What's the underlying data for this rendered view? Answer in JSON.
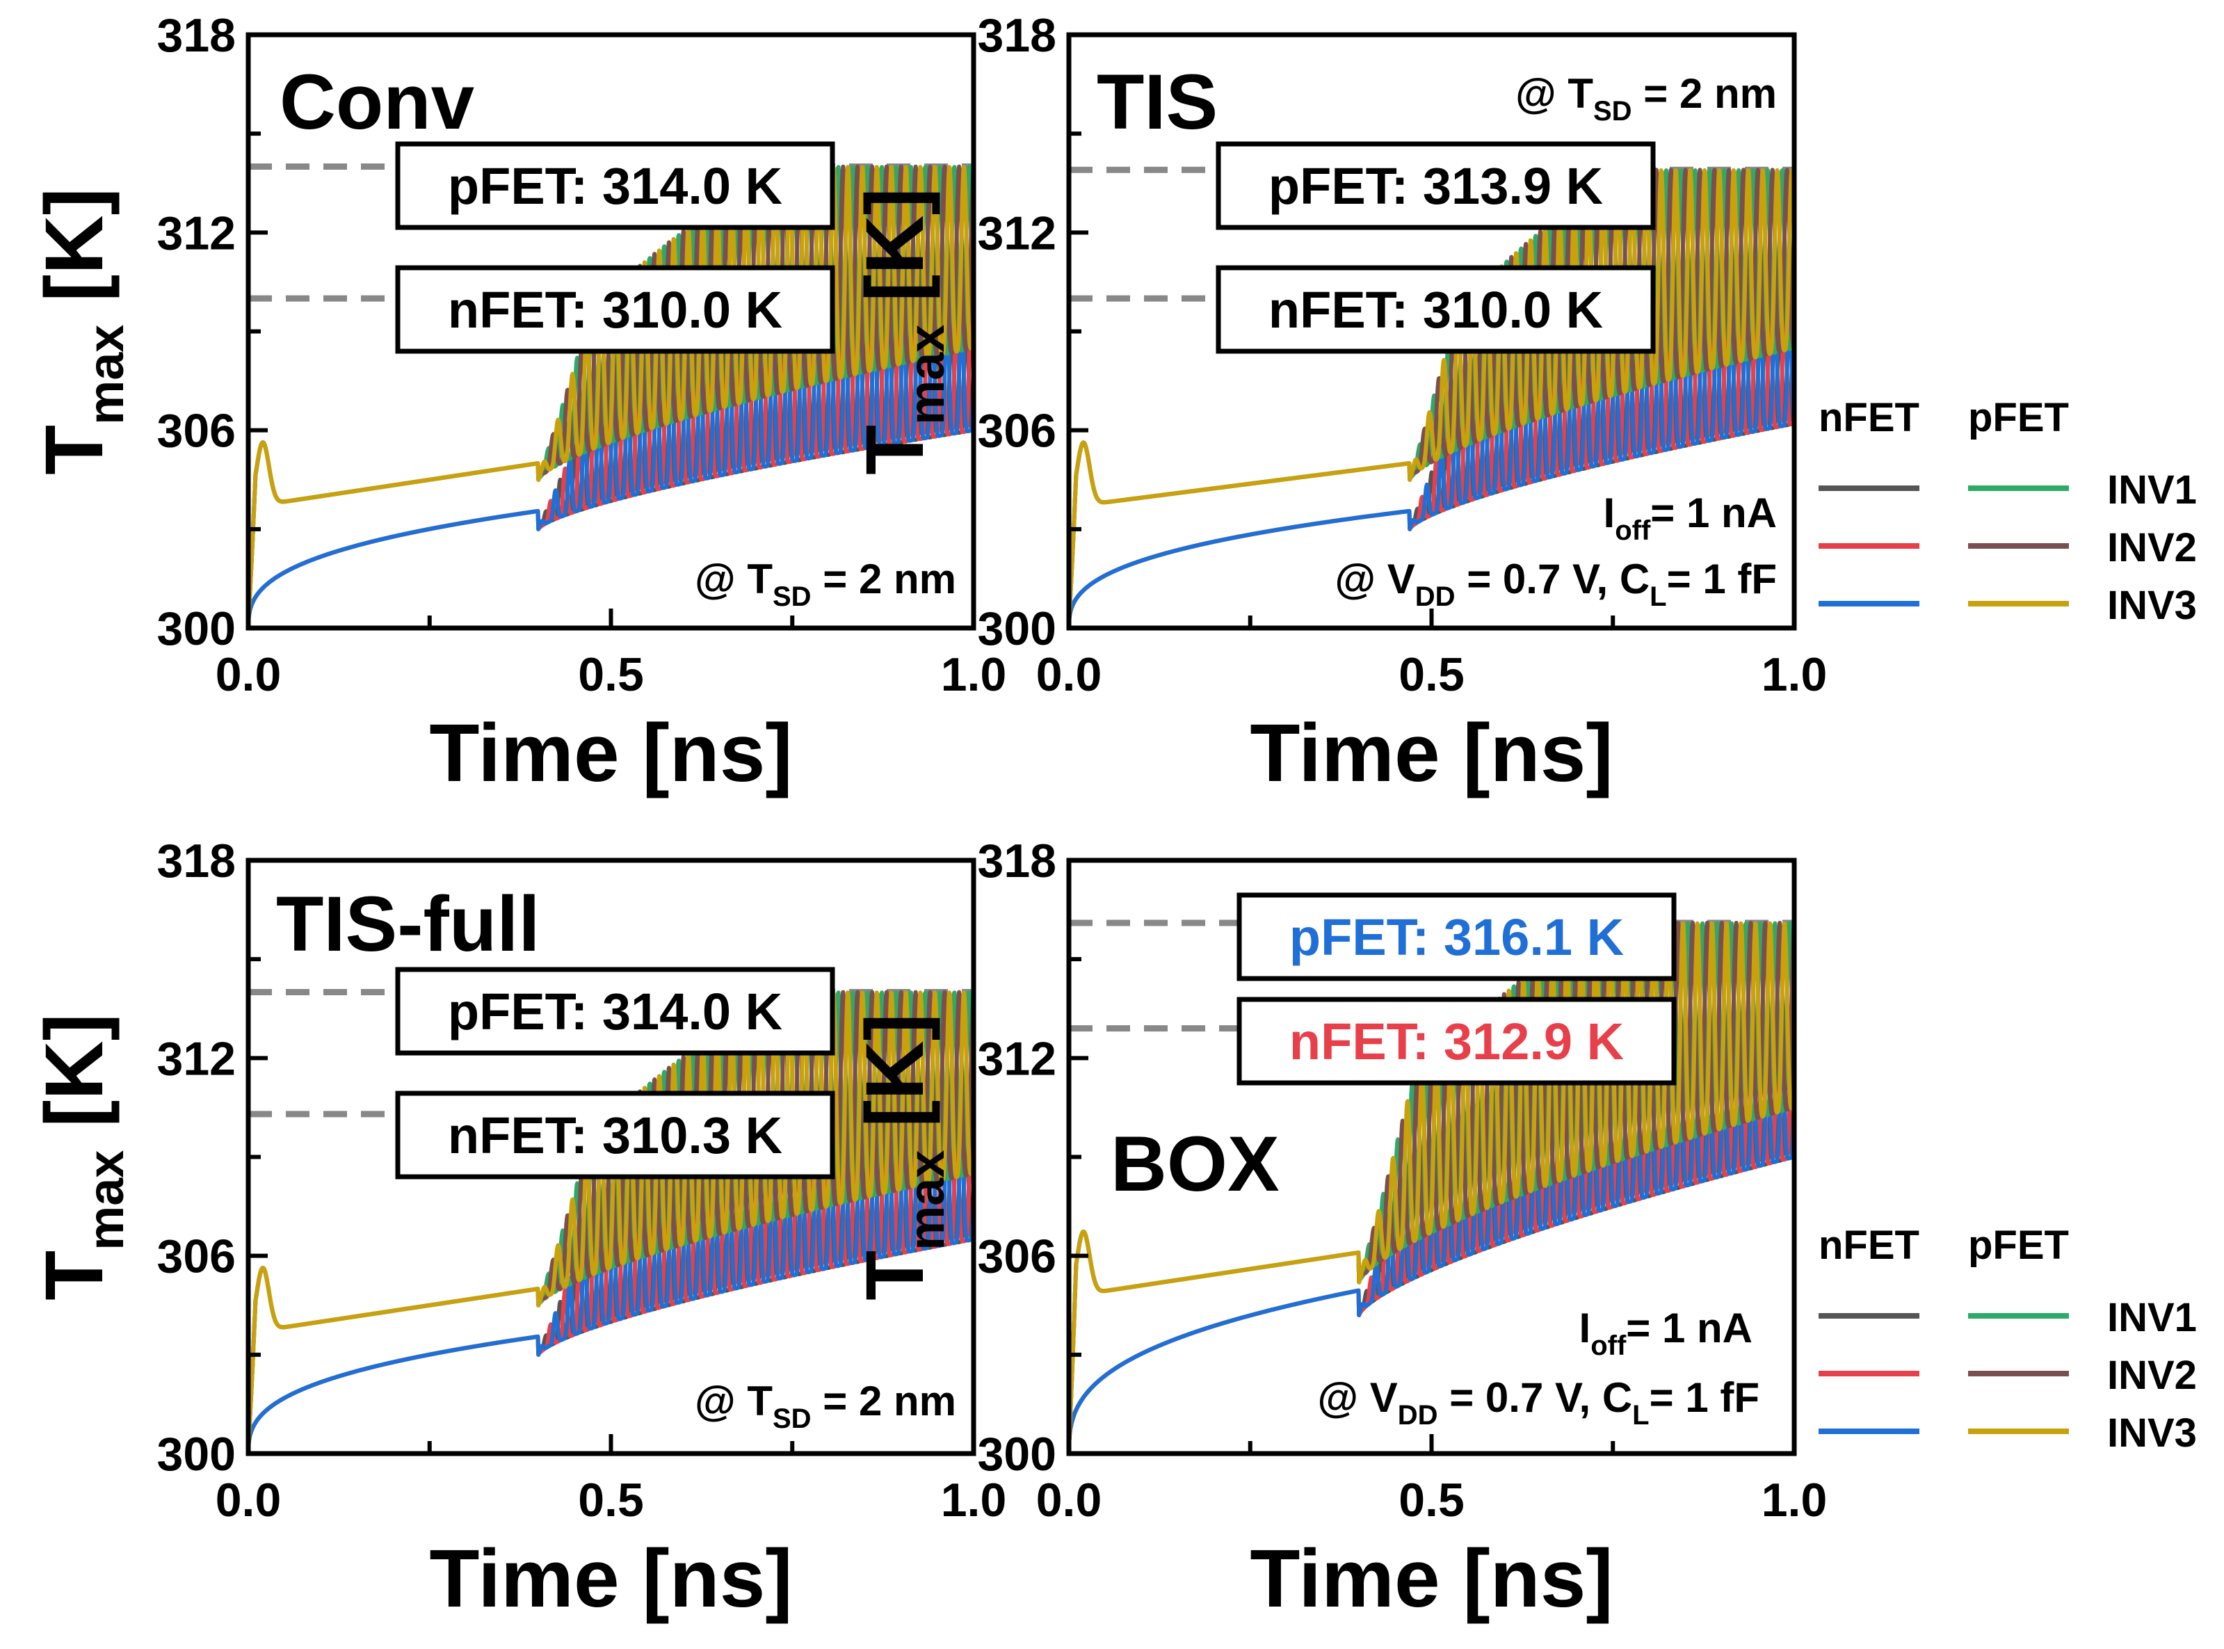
{
  "colors": {
    "nfet_inv1": "#555555",
    "nfet_inv2": "#e8404a",
    "nfet_inv3": "#1f6fd6",
    "pfet_inv1": "#2eaa68",
    "pfet_inv2": "#7b4f4f",
    "pfet_inv3": "#c9a10b",
    "reference_line": "#888888",
    "box_text_highlight_p": "#1f6fd6",
    "box_text_highlight_n": "#e8404a"
  },
  "chart_data": [
    {
      "type": "line",
      "panel": "Conv",
      "title": "Conv",
      "xlabel": "Time [ns]",
      "ylabel": "T_max [K]",
      "xlim": [
        0.0,
        1.0
      ],
      "ylim": [
        300,
        318
      ],
      "xticks": [
        "0.0",
        "0.5",
        "1.0"
      ],
      "yticks": [
        "300",
        "306",
        "312",
        "318"
      ],
      "annotations": [
        {
          "text": "pFET: 314.0 K",
          "ref_value": 314.0,
          "color": "#000000"
        },
        {
          "text": "nFET: 310.0 K",
          "ref_value": 310.0,
          "color": "#000000"
        }
      ],
      "notes": [
        {
          "prefix": "@ T",
          "sub": "SD",
          "suffix": " = 2 nm"
        }
      ],
      "osc_start": 0.4,
      "pfet_envelope": {
        "base": 305.0,
        "peak": 314.0,
        "osc_low_start": 304.5,
        "osc_low_end": 308.5
      },
      "nfet_envelope": {
        "base": 303.6,
        "peak": 310.0,
        "osc_low_start": 303.0,
        "osc_low_end": 306.0
      },
      "series_names": [
        "nFET INV1",
        "nFET INV2",
        "nFET INV3",
        "pFET INV1",
        "pFET INV2",
        "pFET INV3"
      ],
      "legend": null
    },
    {
      "type": "line",
      "panel": "TIS",
      "title": "TIS",
      "xlabel": "Time [ns]",
      "ylabel": "T_max [K]",
      "xlim": [
        0.0,
        1.0
      ],
      "ylim": [
        300,
        318
      ],
      "xticks": [
        "0.0",
        "0.5",
        "1.0"
      ],
      "yticks": [
        "300",
        "306",
        "312",
        "318"
      ],
      "annotations": [
        {
          "text": "pFET: 313.9 K",
          "ref_value": 313.9,
          "color": "#000000"
        },
        {
          "text": "nFET: 310.0 K",
          "ref_value": 310.0,
          "color": "#000000"
        }
      ],
      "notes": [
        {
          "prefix": "@ T",
          "sub": "SD",
          "suffix": " = 2 nm"
        },
        {
          "prefix": "I",
          "sub": "off",
          "suffix": "= 1 nA"
        },
        {
          "prefix": "@ V",
          "sub": "DD",
          "suffix": " = 0.7 V, C",
          "sub2": "L",
          "suffix2": "= 1 fF"
        }
      ],
      "osc_start": 0.47,
      "pfet_envelope": {
        "base": 305.0,
        "peak": 313.9,
        "osc_low_start": 304.5,
        "osc_low_end": 308.5
      },
      "nfet_envelope": {
        "base": 303.6,
        "peak": 310.0,
        "osc_low_start": 303.0,
        "osc_low_end": 306.2
      },
      "series_names": [
        "nFET INV1",
        "nFET INV2",
        "nFET INV3",
        "pFET INV1",
        "pFET INV2",
        "pFET INV3"
      ],
      "legend": {
        "header_n": "nFET",
        "header_p": "pFET",
        "rows": [
          "INV1",
          "INV2",
          "INV3"
        ]
      }
    },
    {
      "type": "line",
      "panel": "TIS-full",
      "title": "TIS-full",
      "xlabel": "Time [ns]",
      "ylabel": "T_max [K]",
      "xlim": [
        0.0,
        1.0
      ],
      "ylim": [
        300,
        318
      ],
      "xticks": [
        "0.0",
        "0.5",
        "1.0"
      ],
      "yticks": [
        "300",
        "306",
        "312",
        "318"
      ],
      "annotations": [
        {
          "text": "pFET: 314.0 K",
          "ref_value": 314.0,
          "color": "#000000"
        },
        {
          "text": "nFET: 310.3 K",
          "ref_value": 310.3,
          "color": "#000000"
        }
      ],
      "notes": [
        {
          "prefix": "@ T",
          "sub": "SD",
          "suffix": " = 2 nm"
        }
      ],
      "osc_start": 0.4,
      "pfet_envelope": {
        "base": 305.0,
        "peak": 314.0,
        "osc_low_start": 304.5,
        "osc_low_end": 308.5
      },
      "nfet_envelope": {
        "base": 303.6,
        "peak": 310.3,
        "osc_low_start": 303.0,
        "osc_low_end": 306.5
      },
      "series_names": [
        "nFET INV1",
        "nFET INV2",
        "nFET INV3",
        "pFET INV1",
        "pFET INV2",
        "pFET INV3"
      ],
      "legend": null
    },
    {
      "type": "line",
      "panel": "BOX",
      "title": "BOX",
      "xlabel": "Time [ns]",
      "ylabel": "T_max [K]",
      "xlim": [
        0.0,
        1.0
      ],
      "ylim": [
        300,
        318
      ],
      "xticks": [
        "0.0",
        "0.5",
        "1.0"
      ],
      "yticks": [
        "300",
        "306",
        "312",
        "318"
      ],
      "annotations": [
        {
          "text": "pFET: 316.1 K",
          "ref_value": 316.1,
          "color": "#1f6fd6"
        },
        {
          "text": "nFET: 312.9 K",
          "ref_value": 312.9,
          "color": "#e8404a"
        }
      ],
      "notes": [
        {
          "prefix": "I",
          "sub": "off",
          "suffix": "= 1 nA"
        },
        {
          "prefix": "@ V",
          "sub": "DD",
          "suffix": " = 0.7 V, C",
          "sub2": "L",
          "suffix2": "= 1 fF"
        }
      ],
      "osc_start": 0.4,
      "pfet_envelope": {
        "base": 306.1,
        "peak": 316.1,
        "osc_low_start": 305.2,
        "osc_low_end": 310.5
      },
      "nfet_envelope": {
        "base": 305.0,
        "peak": 312.9,
        "osc_low_start": 304.2,
        "osc_low_end": 309.0
      },
      "series_names": [
        "nFET INV1",
        "nFET INV2",
        "nFET INV3",
        "pFET INV1",
        "pFET INV2",
        "pFET INV3"
      ],
      "legend": {
        "header_n": "nFET",
        "header_p": "pFET",
        "rows": [
          "INV1",
          "INV2",
          "INV3"
        ]
      }
    }
  ]
}
